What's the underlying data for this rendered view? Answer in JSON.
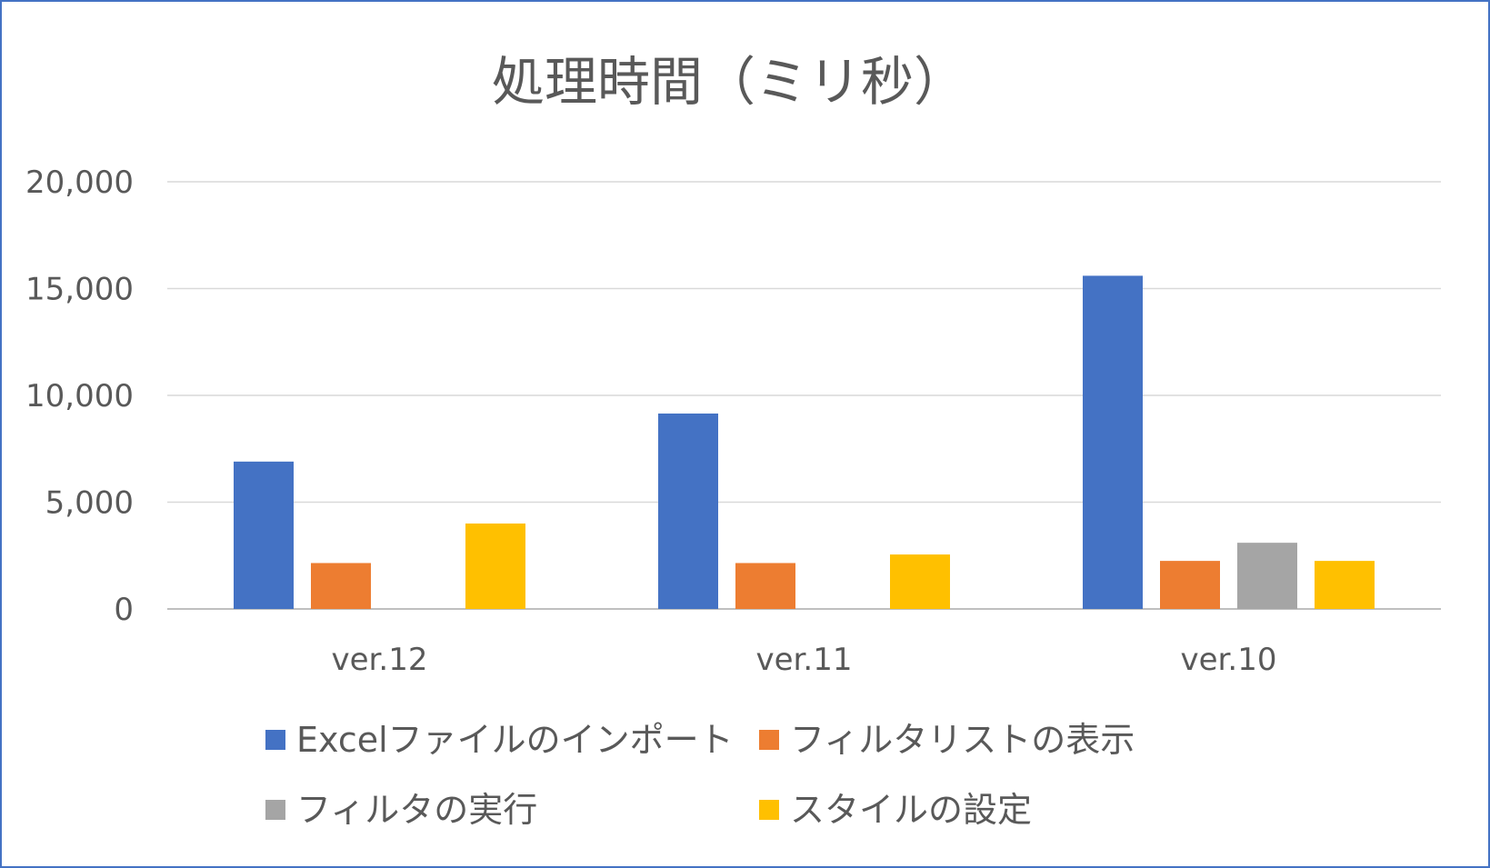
{
  "chart_data": {
    "type": "bar",
    "title": "処理時間（ミリ秒）",
    "xlabel": "",
    "ylabel": "",
    "ylim": [
      0,
      20000
    ],
    "yticks": [
      0,
      5000,
      10000,
      15000,
      20000
    ],
    "ytick_labels": [
      "0",
      "5,000",
      "10,000",
      "15,000",
      "20,000"
    ],
    "grid": true,
    "legend_position": "bottom",
    "categories": [
      "ver.12",
      "ver.11",
      "ver.10"
    ],
    "series": [
      {
        "name": "Excelファイルのインポート",
        "color": "#4472c4",
        "values": [
          6900,
          9150,
          15600
        ]
      },
      {
        "name": "フィルタリストの表示",
        "color": "#ed7d31",
        "values": [
          2150,
          2150,
          2250
        ]
      },
      {
        "name": "フィルタの実行",
        "color": "#a5a5a5",
        "values": [
          null,
          null,
          3100
        ]
      },
      {
        "name": "スタイルの設定",
        "color": "#ffc000",
        "values": [
          4000,
          2550,
          2250
        ]
      }
    ]
  }
}
